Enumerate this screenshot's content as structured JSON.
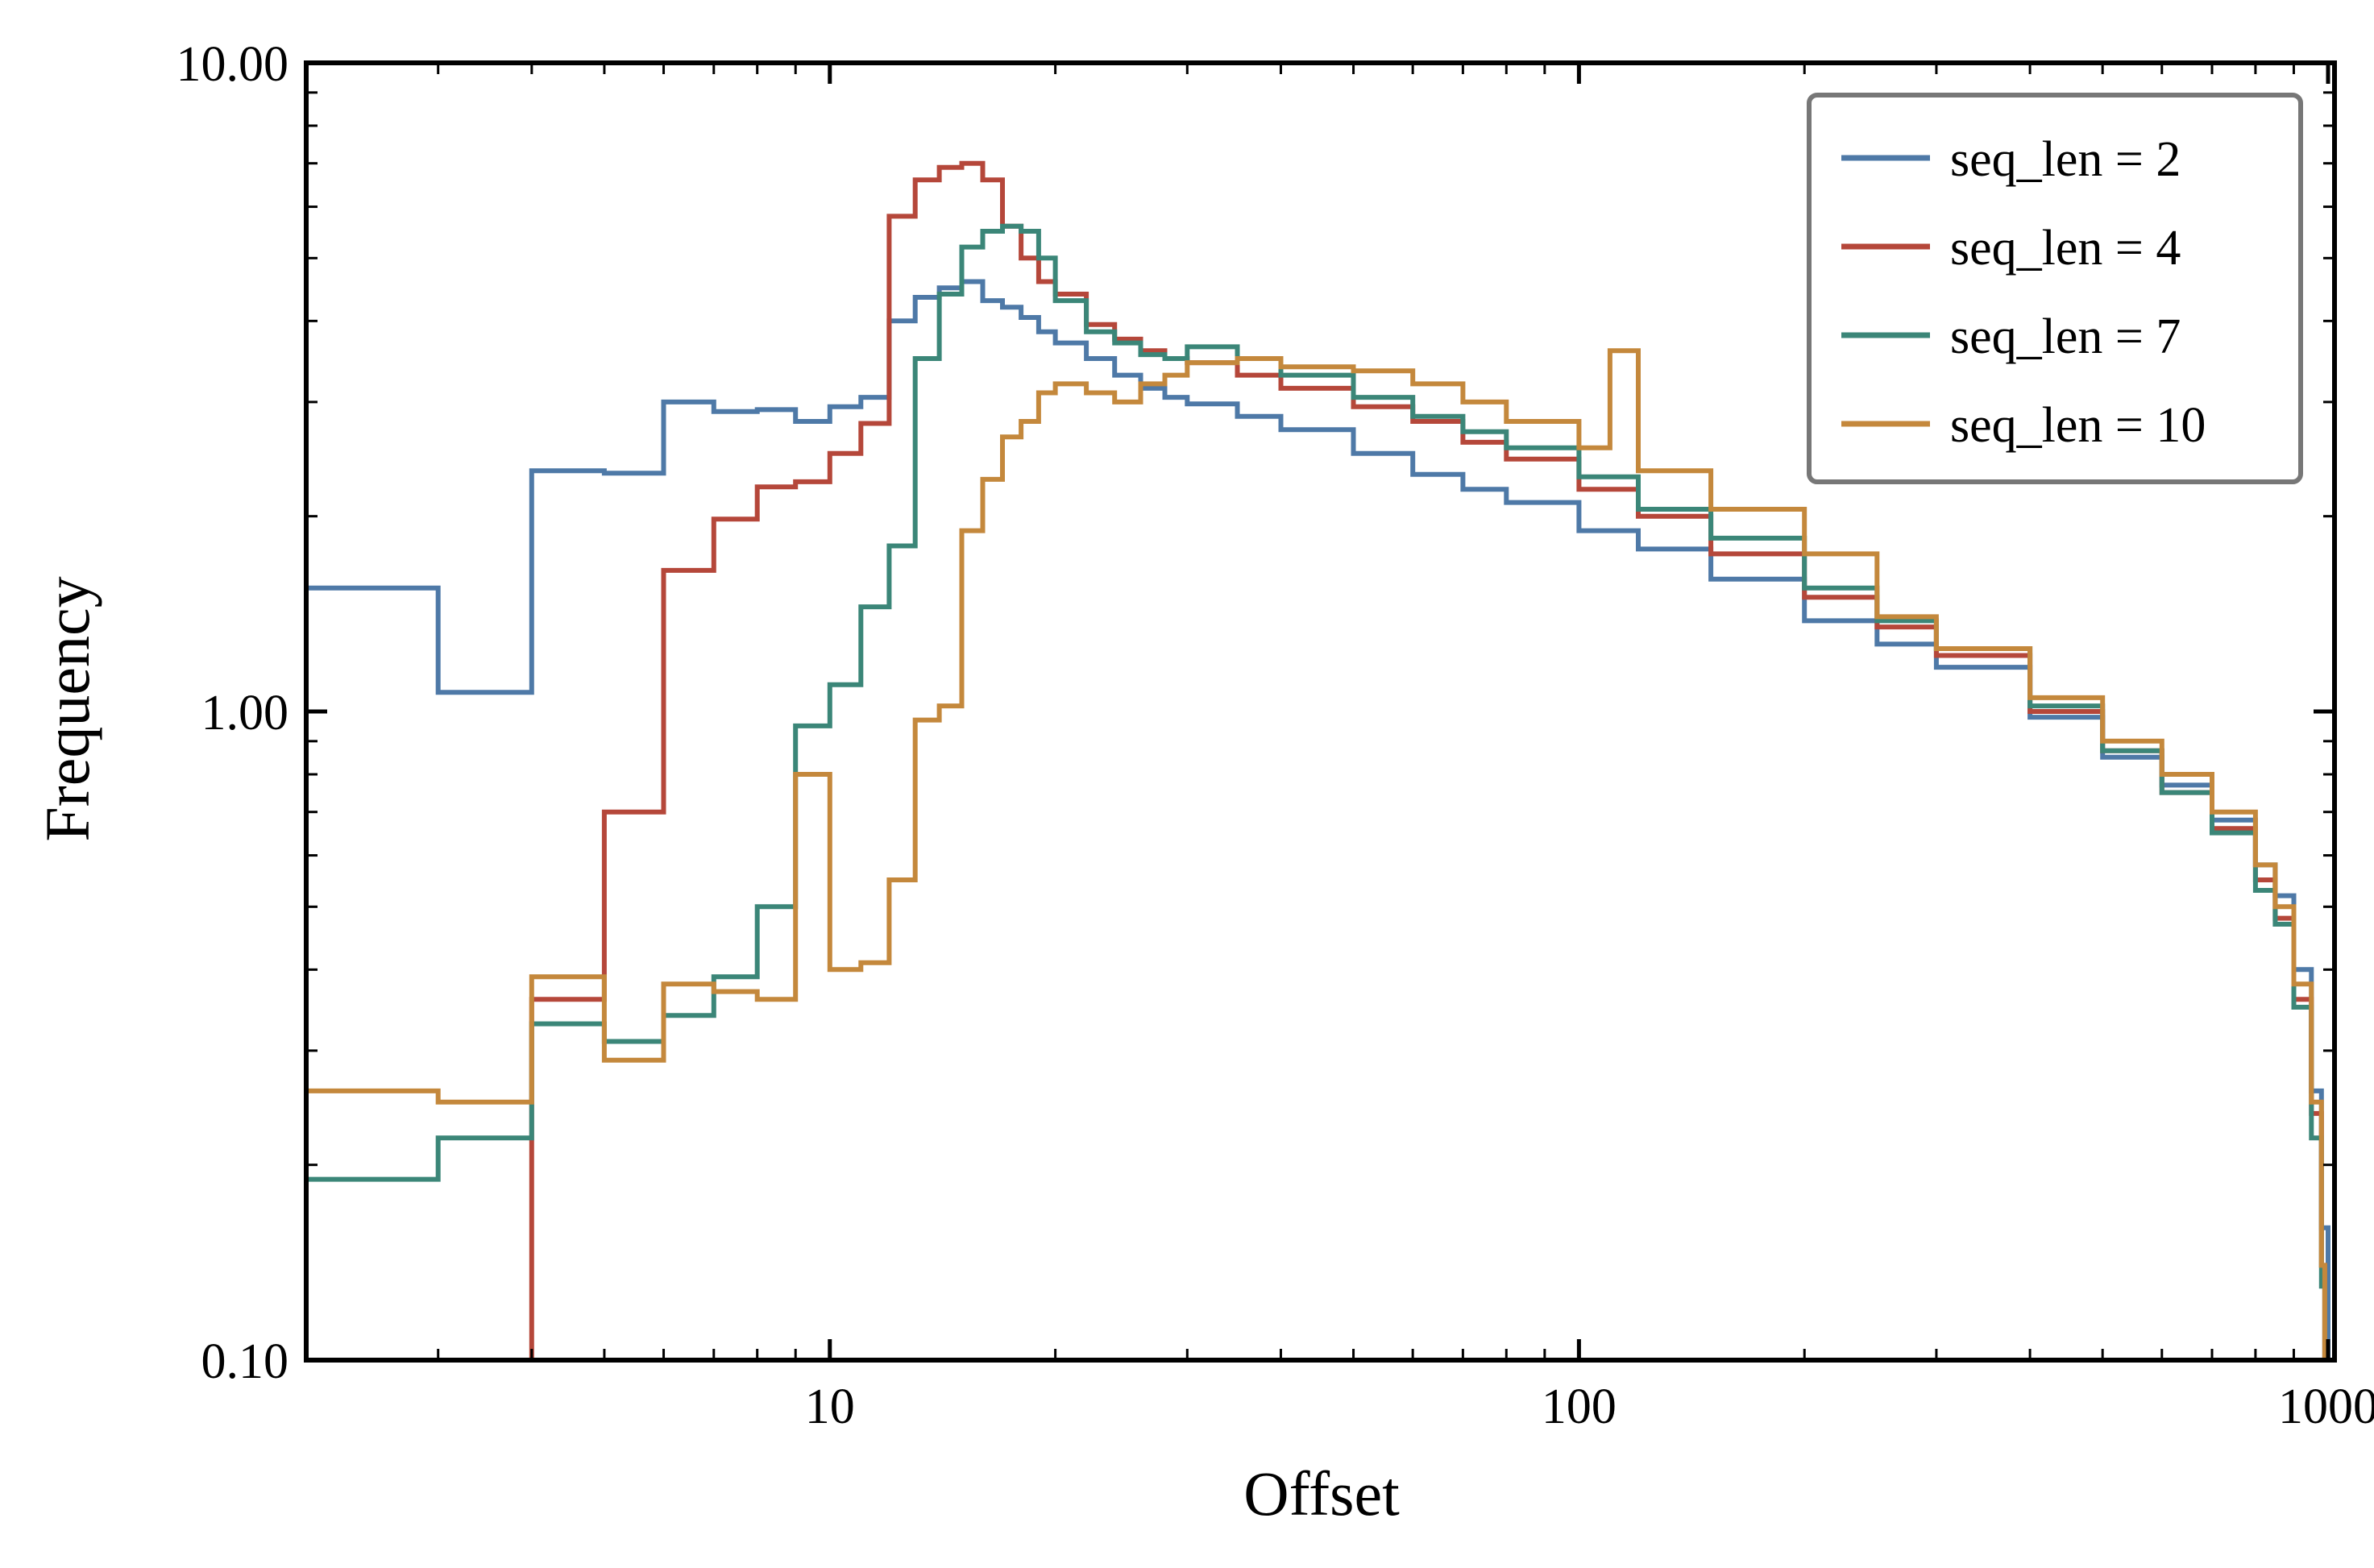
{
  "chart_data": {
    "type": "line",
    "drawstyle": "steps",
    "xlabel": "Offset",
    "ylabel": "Frequency",
    "xscale": "log",
    "yscale": "log",
    "xlim": [
      2,
      1020
    ],
    "ylim": [
      0.1,
      10.0
    ],
    "x_ticks": [
      10,
      100,
      1000
    ],
    "x_tick_labels": [
      "10",
      "100",
      "1000"
    ],
    "y_ticks": [
      0.1,
      1.0,
      10.0
    ],
    "y_tick_labels": [
      "0.10",
      "1.00",
      "10.00"
    ],
    "grid": false,
    "legend_position": "top-right",
    "series": [
      {
        "name": "seq_len = 2",
        "color": "#4e79a7",
        "points": [
          [
            2,
            1.55
          ],
          [
            3,
            1.07
          ],
          [
            4,
            2.35
          ],
          [
            5,
            2.33
          ],
          [
            6,
            3.0
          ],
          [
            7,
            2.9
          ],
          [
            8,
            2.92
          ],
          [
            9,
            2.8
          ],
          [
            10,
            2.95
          ],
          [
            11,
            3.05
          ],
          [
            12,
            4.0
          ],
          [
            13,
            4.35
          ],
          [
            14,
            4.5
          ],
          [
            15,
            4.6
          ],
          [
            16,
            4.3
          ],
          [
            17,
            4.2
          ],
          [
            18,
            4.05
          ],
          [
            19,
            3.85
          ],
          [
            20,
            3.7
          ],
          [
            22,
            3.5
          ],
          [
            24,
            3.3
          ],
          [
            26,
            3.15
          ],
          [
            28,
            3.05
          ],
          [
            30,
            2.98
          ],
          [
            35,
            2.85
          ],
          [
            40,
            2.72
          ],
          [
            50,
            2.5
          ],
          [
            60,
            2.32
          ],
          [
            70,
            2.2
          ],
          [
            80,
            2.1
          ],
          [
            100,
            1.9
          ],
          [
            120,
            1.78
          ],
          [
            150,
            1.6
          ],
          [
            200,
            1.38
          ],
          [
            250,
            1.27
          ],
          [
            300,
            1.17
          ],
          [
            400,
            0.98
          ],
          [
            500,
            0.85
          ],
          [
            600,
            0.77
          ],
          [
            700,
            0.68
          ],
          [
            800,
            0.58
          ],
          [
            850,
            0.52
          ],
          [
            900,
            0.4
          ],
          [
            950,
            0.26
          ],
          [
            980,
            0.16
          ],
          [
            1000,
            0.1
          ]
        ]
      },
      {
        "name": "seq_len = 4",
        "color": "#b5473a",
        "points": [
          [
            4,
            0.1
          ],
          [
            4,
            0.36
          ],
          [
            5,
            0.7
          ],
          [
            6,
            1.65
          ],
          [
            7,
            1.98
          ],
          [
            8,
            2.22
          ],
          [
            9,
            2.26
          ],
          [
            10,
            2.5
          ],
          [
            11,
            2.78
          ],
          [
            12,
            5.8
          ],
          [
            13,
            6.6
          ],
          [
            14,
            6.9
          ],
          [
            15,
            7.0
          ],
          [
            16,
            6.6
          ],
          [
            17,
            5.6
          ],
          [
            18,
            5.0
          ],
          [
            19,
            4.6
          ],
          [
            20,
            4.4
          ],
          [
            22,
            3.95
          ],
          [
            24,
            3.75
          ],
          [
            26,
            3.6
          ],
          [
            28,
            3.5
          ],
          [
            30,
            3.45
          ],
          [
            35,
            3.3
          ],
          [
            40,
            3.15
          ],
          [
            50,
            2.95
          ],
          [
            60,
            2.8
          ],
          [
            70,
            2.6
          ],
          [
            80,
            2.45
          ],
          [
            100,
            2.2
          ],
          [
            120,
            2.0
          ],
          [
            150,
            1.75
          ],
          [
            200,
            1.5
          ],
          [
            250,
            1.35
          ],
          [
            300,
            1.22
          ],
          [
            400,
            1.0
          ],
          [
            500,
            0.87
          ],
          [
            600,
            0.75
          ],
          [
            700,
            0.66
          ],
          [
            800,
            0.55
          ],
          [
            850,
            0.48
          ],
          [
            900,
            0.36
          ],
          [
            950,
            0.24
          ],
          [
            980,
            0.14
          ],
          [
            990,
            0.1
          ]
        ]
      },
      {
        "name": "seq_len = 7",
        "color": "#3b8678",
        "points": [
          [
            2,
            0.19
          ],
          [
            3,
            0.22
          ],
          [
            4,
            0.33
          ],
          [
            5,
            0.31
          ],
          [
            6,
            0.34
          ],
          [
            7,
            0.39
          ],
          [
            8,
            0.5
          ],
          [
            9,
            0.95
          ],
          [
            10,
            1.1
          ],
          [
            11,
            1.45
          ],
          [
            12,
            1.8
          ],
          [
            13,
            3.5
          ],
          [
            14,
            4.4
          ],
          [
            15,
            5.2
          ],
          [
            16,
            5.5
          ],
          [
            17,
            5.6
          ],
          [
            18,
            5.5
          ],
          [
            19,
            5.0
          ],
          [
            20,
            4.3
          ],
          [
            22,
            3.85
          ],
          [
            24,
            3.7
          ],
          [
            26,
            3.55
          ],
          [
            28,
            3.5
          ],
          [
            30,
            3.65
          ],
          [
            35,
            3.5
          ],
          [
            40,
            3.3
          ],
          [
            50,
            3.05
          ],
          [
            60,
            2.85
          ],
          [
            70,
            2.7
          ],
          [
            80,
            2.55
          ],
          [
            100,
            2.3
          ],
          [
            120,
            2.05
          ],
          [
            150,
            1.85
          ],
          [
            200,
            1.55
          ],
          [
            250,
            1.38
          ],
          [
            300,
            1.25
          ],
          [
            400,
            1.02
          ],
          [
            500,
            0.87
          ],
          [
            600,
            0.75
          ],
          [
            700,
            0.65
          ],
          [
            800,
            0.53
          ],
          [
            850,
            0.47
          ],
          [
            900,
            0.35
          ],
          [
            950,
            0.22
          ],
          [
            980,
            0.13
          ],
          [
            990,
            0.1
          ]
        ]
      },
      {
        "name": "seq_len = 10",
        "color": "#c4883c",
        "points": [
          [
            2,
            0.26
          ],
          [
            3,
            0.25
          ],
          [
            4,
            0.39
          ],
          [
            5,
            0.29
          ],
          [
            6,
            0.38
          ],
          [
            7,
            0.37
          ],
          [
            8,
            0.36
          ],
          [
            9,
            0.8
          ],
          [
            10,
            0.4
          ],
          [
            11,
            0.41
          ],
          [
            12,
            0.55
          ],
          [
            13,
            0.97
          ],
          [
            14,
            1.02
          ],
          [
            15,
            1.9
          ],
          [
            16,
            2.28
          ],
          [
            17,
            2.65
          ],
          [
            18,
            2.8
          ],
          [
            19,
            3.1
          ],
          [
            20,
            3.2
          ],
          [
            22,
            3.1
          ],
          [
            24,
            3.0
          ],
          [
            26,
            3.2
          ],
          [
            28,
            3.3
          ],
          [
            30,
            3.45
          ],
          [
            35,
            3.5
          ],
          [
            40,
            3.4
          ],
          [
            50,
            3.35
          ],
          [
            60,
            3.2
          ],
          [
            70,
            3.0
          ],
          [
            80,
            2.8
          ],
          [
            100,
            2.55
          ],
          [
            110,
            3.6
          ],
          [
            120,
            2.35
          ],
          [
            150,
            2.05
          ],
          [
            200,
            1.75
          ],
          [
            250,
            1.4
          ],
          [
            300,
            1.25
          ],
          [
            400,
            1.05
          ],
          [
            500,
            0.9
          ],
          [
            600,
            0.8
          ],
          [
            700,
            0.7
          ],
          [
            800,
            0.58
          ],
          [
            850,
            0.5
          ],
          [
            900,
            0.38
          ],
          [
            950,
            0.25
          ],
          [
            980,
            0.14
          ],
          [
            990,
            0.1
          ]
        ]
      }
    ]
  }
}
